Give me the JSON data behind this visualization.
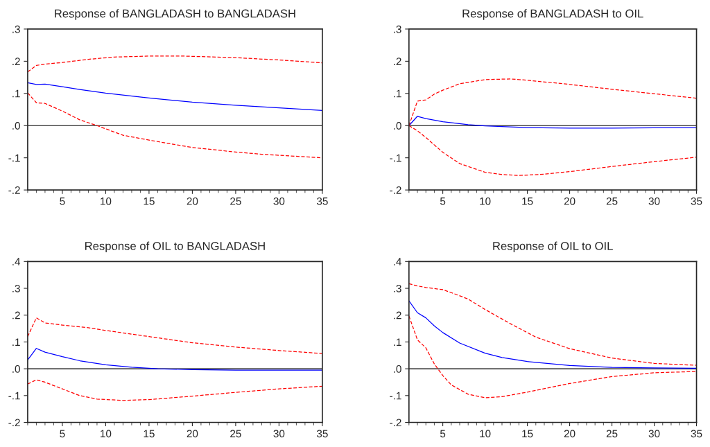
{
  "chart_data": [
    {
      "type": "line",
      "title": "Response of BANGLADASH to BANGLADASH",
      "xlim": [
        1,
        35
      ],
      "xticks": [
        5,
        10,
        15,
        20,
        25,
        30,
        35
      ],
      "ylim": [
        -0.2,
        0.3
      ],
      "yticks": [
        {
          "value": -0.2,
          "label": "-.2"
        },
        {
          "value": -0.1,
          "label": "-.1"
        },
        {
          "value": 0,
          "label": ".0"
        },
        {
          "value": 0.1,
          "label": ".1"
        },
        {
          "value": 0.2,
          "label": ".2"
        },
        {
          "value": 0.3,
          "label": ".3"
        }
      ],
      "grid": false,
      "legend": false,
      "ref_lines": [
        {
          "axis": "y",
          "value": 0,
          "color": "#000000",
          "line_style": "solid"
        }
      ],
      "series": [
        {
          "color": "#0000ff",
          "line_style": "solid",
          "x": [
            1,
            2,
            3,
            5,
            7,
            10,
            15,
            20,
            25,
            30,
            35
          ],
          "values": [
            0.133,
            0.128,
            0.129,
            0.121,
            0.112,
            0.101,
            0.086,
            0.073,
            0.063,
            0.055,
            0.047
          ]
        },
        {
          "color": "#ff0000",
          "line_style": "dashed",
          "x": [
            1,
            2,
            3,
            5,
            8,
            11,
            15,
            19,
            25,
            30,
            35
          ],
          "values": [
            0.167,
            0.187,
            0.191,
            0.196,
            0.206,
            0.213,
            0.216,
            0.216,
            0.211,
            0.204,
            0.195
          ]
        },
        {
          "color": "#ff0000",
          "line_style": "dashed",
          "x": [
            1,
            2,
            3,
            5,
            7,
            9,
            12,
            15,
            20,
            25,
            28,
            35
          ],
          "values": [
            0.102,
            0.071,
            0.069,
            0.045,
            0.018,
            0.0,
            -0.03,
            -0.045,
            -0.068,
            -0.082,
            -0.089,
            -0.1
          ]
        }
      ]
    },
    {
      "type": "line",
      "title": "Response of BANGLADASH to OIL",
      "xlim": [
        1,
        35
      ],
      "xticks": [
        5,
        10,
        15,
        20,
        25,
        30,
        35
      ],
      "ylim": [
        -0.2,
        0.3
      ],
      "yticks": [
        {
          "value": -0.2,
          "label": "-.2"
        },
        {
          "value": -0.1,
          "label": "-.1"
        },
        {
          "value": 0,
          "label": ".0"
        },
        {
          "value": 0.1,
          "label": ".1"
        },
        {
          "value": 0.2,
          "label": ".2"
        },
        {
          "value": 0.3,
          "label": ".3"
        }
      ],
      "grid": false,
      "legend": false,
      "ref_lines": [
        {
          "axis": "y",
          "value": 0,
          "color": "#000000",
          "line_style": "solid"
        }
      ],
      "series": [
        {
          "color": "#0000ff",
          "line_style": "solid",
          "x": [
            1,
            2,
            3,
            5,
            8,
            10,
            15,
            20,
            25,
            30,
            35
          ],
          "values": [
            0,
            0.029,
            0.022,
            0.012,
            0.003,
            -0.001,
            -0.006,
            -0.008,
            -0.008,
            -0.007,
            -0.007
          ]
        },
        {
          "color": "#ff0000",
          "line_style": "dashed",
          "x": [
            1,
            2,
            3,
            4,
            5,
            7,
            10,
            13,
            15,
            20,
            25,
            30,
            35
          ],
          "values": [
            0,
            0.076,
            0.08,
            0.098,
            0.11,
            0.13,
            0.143,
            0.145,
            0.141,
            0.128,
            0.113,
            0.099,
            0.085
          ]
        },
        {
          "color": "#ff0000",
          "line_style": "dashed",
          "x": [
            1,
            2,
            3,
            5,
            7,
            10,
            12,
            14,
            17,
            20,
            25,
            30,
            35
          ],
          "values": [
            0,
            -0.016,
            -0.037,
            -0.083,
            -0.118,
            -0.145,
            -0.152,
            -0.155,
            -0.151,
            -0.143,
            -0.127,
            -0.112,
            -0.098
          ]
        }
      ]
    },
    {
      "type": "line",
      "title": "Response of OIL to BANGLADASH",
      "xlim": [
        1,
        35
      ],
      "xticks": [
        5,
        10,
        15,
        20,
        25,
        30,
        35
      ],
      "ylim": [
        -0.2,
        0.4
      ],
      "yticks": [
        {
          "value": -0.2,
          "label": "-.2"
        },
        {
          "value": -0.1,
          "label": "-.1"
        },
        {
          "value": 0,
          "label": ".0"
        },
        {
          "value": 0.1,
          "label": ".1"
        },
        {
          "value": 0.2,
          "label": ".2"
        },
        {
          "value": 0.3,
          "label": ".3"
        },
        {
          "value": 0.4,
          "label": ".4"
        }
      ],
      "grid": false,
      "legend": false,
      "ref_lines": [
        {
          "axis": "y",
          "value": 0,
          "color": "#000000",
          "line_style": "solid"
        }
      ],
      "series": [
        {
          "color": "#0000ff",
          "line_style": "solid",
          "x": [
            1,
            2,
            3,
            5,
            7,
            10,
            13,
            16,
            20,
            25,
            35
          ],
          "values": [
            0.033,
            0.076,
            0.062,
            0.045,
            0.03,
            0.015,
            0.006,
            0.0,
            -0.003,
            -0.005,
            -0.005
          ]
        },
        {
          "color": "#ff0000",
          "line_style": "dashed",
          "x": [
            1,
            2,
            3,
            5,
            8,
            10,
            15,
            20,
            25,
            30,
            35
          ],
          "values": [
            0.12,
            0.19,
            0.171,
            0.163,
            0.153,
            0.143,
            0.12,
            0.097,
            0.081,
            0.068,
            0.057
          ]
        },
        {
          "color": "#ff0000",
          "line_style": "dashed",
          "x": [
            1,
            2,
            3,
            5,
            7,
            9,
            12,
            15,
            20,
            25,
            30,
            35
          ],
          "values": [
            -0.057,
            -0.041,
            -0.05,
            -0.075,
            -0.1,
            -0.113,
            -0.118,
            -0.115,
            -0.102,
            -0.088,
            -0.075,
            -0.065
          ]
        }
      ]
    },
    {
      "type": "line",
      "title": "Response of OIL to OIL",
      "xlim": [
        1,
        35
      ],
      "xticks": [
        5,
        10,
        15,
        20,
        25,
        30,
        35
      ],
      "ylim": [
        -0.2,
        0.4
      ],
      "yticks": [
        {
          "value": -0.2,
          "label": "-.2"
        },
        {
          "value": -0.1,
          "label": "-.1"
        },
        {
          "value": 0,
          "label": ".0"
        },
        {
          "value": 0.1,
          "label": ".1"
        },
        {
          "value": 0.2,
          "label": ".2"
        },
        {
          "value": 0.3,
          "label": ".3"
        },
        {
          "value": 0.4,
          "label": ".4"
        }
      ],
      "grid": false,
      "legend": false,
      "ref_lines": [
        {
          "axis": "y",
          "value": 0,
          "color": "#000000",
          "line_style": "solid"
        }
      ],
      "series": [
        {
          "color": "#0000ff",
          "line_style": "solid",
          "x": [
            1,
            2,
            3,
            4,
            5,
            7,
            10,
            12,
            15,
            20,
            25,
            30,
            35
          ],
          "values": [
            0.253,
            0.209,
            0.19,
            0.16,
            0.135,
            0.096,
            0.058,
            0.042,
            0.027,
            0.012,
            0.005,
            0.003,
            0.002
          ]
        },
        {
          "color": "#ff0000",
          "line_style": "dashed",
          "x": [
            1,
            2,
            3,
            5,
            6,
            8,
            10,
            13,
            16,
            20,
            25,
            30,
            35
          ],
          "values": [
            0.317,
            0.309,
            0.303,
            0.295,
            0.284,
            0.26,
            0.221,
            0.168,
            0.118,
            0.075,
            0.04,
            0.02,
            0.013
          ]
        },
        {
          "color": "#ff0000",
          "line_style": "dashed",
          "x": [
            1,
            2,
            3,
            4,
            5,
            6,
            8,
            10,
            12,
            15,
            20,
            25,
            30,
            35
          ],
          "values": [
            0.197,
            0.108,
            0.078,
            0.018,
            -0.025,
            -0.06,
            -0.095,
            -0.108,
            -0.104,
            -0.087,
            -0.055,
            -0.029,
            -0.015,
            -0.01
          ]
        }
      ]
    }
  ]
}
